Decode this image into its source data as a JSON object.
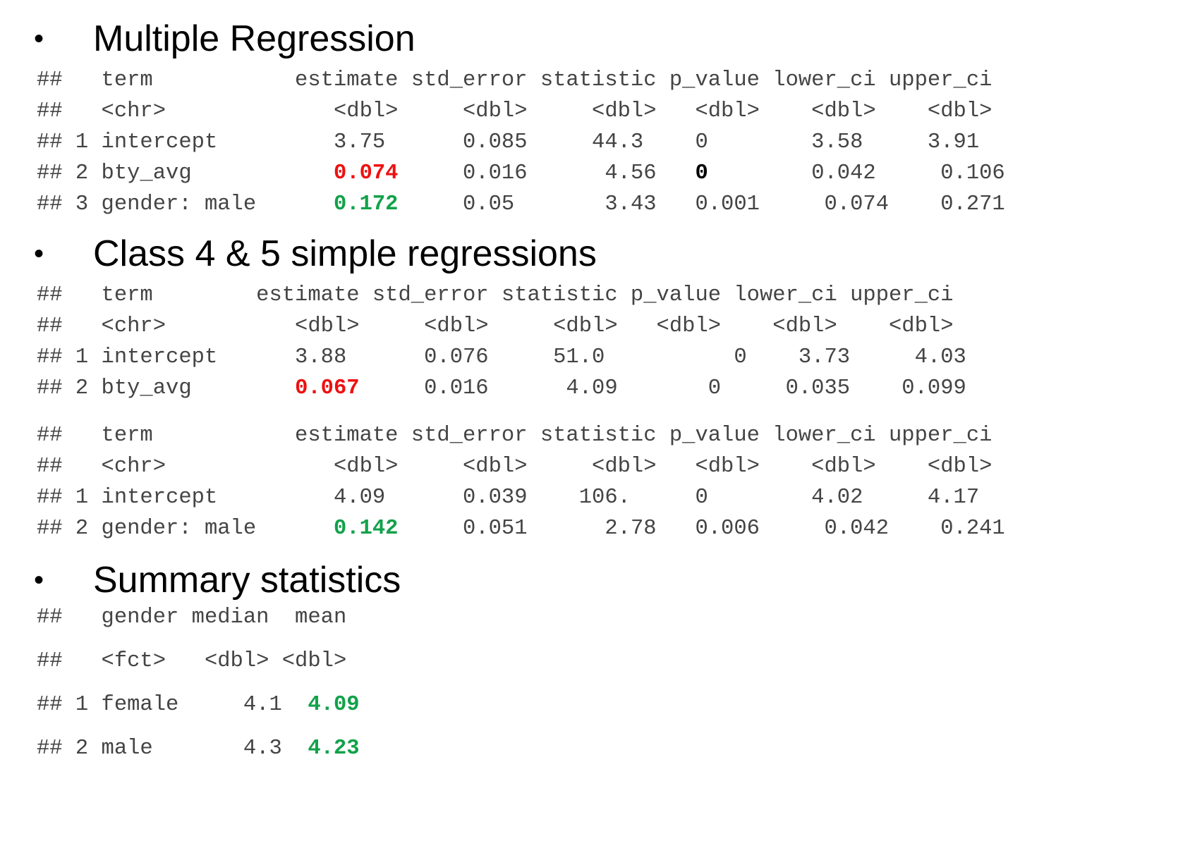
{
  "sections": [
    {
      "title": "Multiple Regression",
      "tables": [
        {
          "lines": [
            {
              "text": "##   term           estimate std_error statistic p_value lower_ci upper_ci"
            },
            {
              "text": "##   <chr>             <dbl>     <dbl>     <dbl>   <dbl>    <dbl>    <dbl>"
            },
            {
              "text": "## 1 intercept         3.75      0.085     44.3    0        3.58     3.91"
            },
            {
              "pre": "## 2 bty_avg           ",
              "hl": "0.074",
              "hl_color": "red",
              "mid": "     0.016      4.56   ",
              "hl2": "0",
              "post": "        0.042     0.106"
            },
            {
              "pre": "## 3 gender: male      ",
              "hl": "0.172",
              "hl_color": "green",
              "post": "     0.05       3.43   0.001     0.074    0.271"
            }
          ]
        }
      ]
    },
    {
      "title": "Class 4 & 5 simple regressions",
      "tables": [
        {
          "lines": [
            {
              "text": "##   term        estimate std_error statistic p_value lower_ci upper_ci"
            },
            {
              "text": "##   <chr>          <dbl>     <dbl>     <dbl>   <dbl>    <dbl>    <dbl>"
            },
            {
              "text": "## 1 intercept      3.88      0.076     51.0          0    3.73     4.03"
            },
            {
              "pre": "## 2 bty_avg        ",
              "hl": "0.067",
              "hl_color": "red",
              "post": "     0.016      4.09       0     0.035    0.099"
            }
          ]
        },
        {
          "lines": [
            {
              "text": "##   term           estimate std_error statistic p_value lower_ci upper_ci"
            },
            {
              "text": "##   <chr>             <dbl>     <dbl>     <dbl>   <dbl>    <dbl>    <dbl>"
            },
            {
              "text": "## 1 intercept         4.09      0.039    106.     0        4.02     4.17"
            },
            {
              "pre": "## 2 gender: male      ",
              "hl": "0.142",
              "hl_color": "green",
              "post": "     0.051      2.78   0.006     0.042    0.241"
            }
          ]
        }
      ]
    },
    {
      "title": "Summary statistics",
      "tables": [
        {
          "lines": [
            {
              "text": "##   gender median  mean"
            },
            {
              "text": "##   <fct>   <dbl> <dbl>"
            },
            {
              "pre": "## 1 female     4.1  ",
              "hl": "4.09",
              "hl_color": "green",
              "post": ""
            },
            {
              "pre": "## 2 male       4.3  ",
              "hl": "4.23",
              "hl_color": "green",
              "post": ""
            }
          ]
        }
      ]
    }
  ]
}
